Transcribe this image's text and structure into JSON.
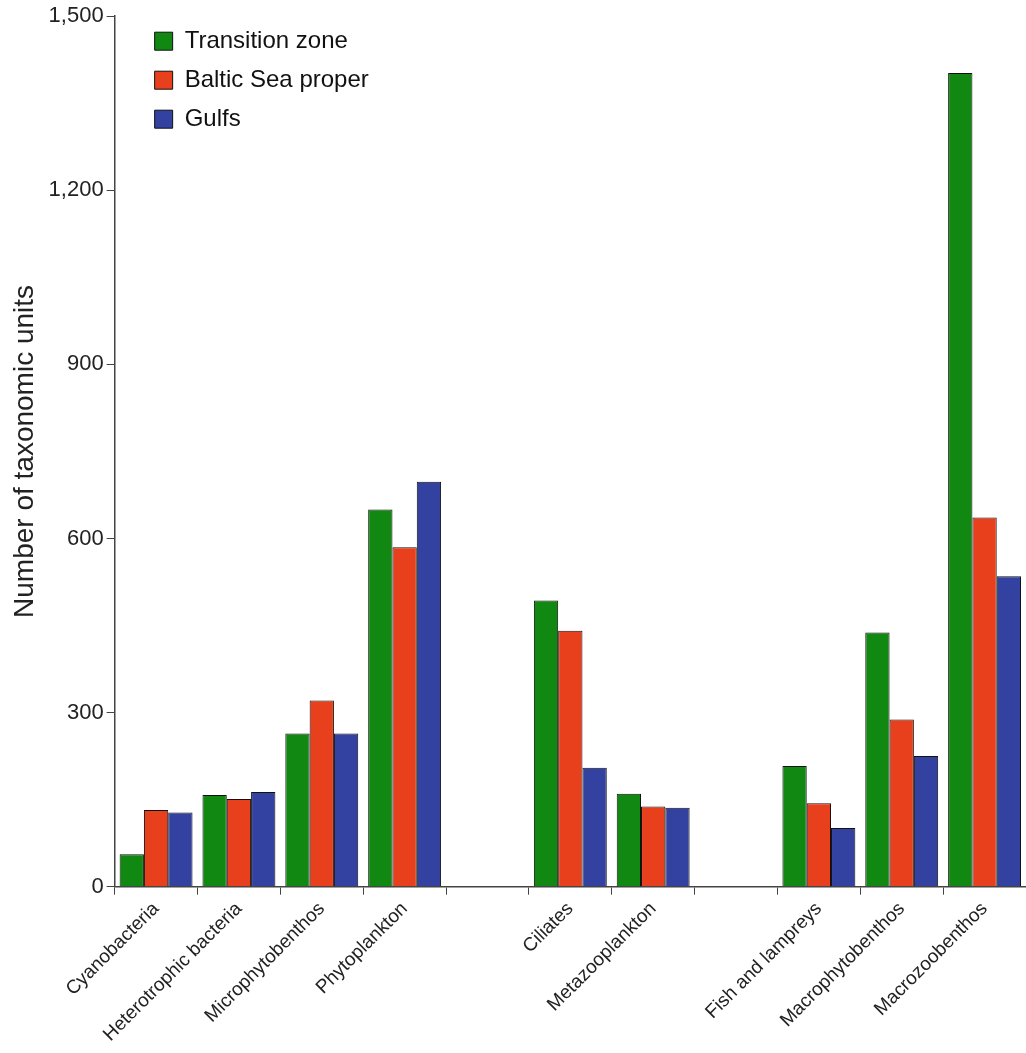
{
  "chart_data": {
    "type": "bar",
    "ylabel": "Number of taxonomic units",
    "categories": [
      "Cyanobacteria",
      "Heterotrophic bacteria",
      "Microphytobenthos",
      "Phytoplankton",
      null,
      "Ciliates",
      "Metazooplankton",
      null,
      "Fish and lampreys",
      "Macrophytobenthos",
      "Macrozoobenthos"
    ],
    "series": [
      {
        "name": "Transition zone",
        "color": "#118811",
        "values": [
          56,
          158,
          264,
          650,
          null,
          493,
          160,
          null,
          208,
          438,
          1402
        ]
      },
      {
        "name": "Baltic Sea proper",
        "color": "#e8401c",
        "values": [
          132,
          151,
          321,
          585,
          null,
          441,
          138,
          null,
          144,
          288,
          636
        ]
      },
      {
        "name": "Gulfs",
        "color": "#3341a0",
        "values": [
          128,
          163,
          264,
          698,
          null,
          205,
          136,
          null,
          101,
          225,
          535
        ]
      }
    ],
    "ylim": [
      0,
      1500
    ],
    "yticks": [
      {
        "value": 0,
        "label": "0"
      },
      {
        "value": 300,
        "label": "300"
      },
      {
        "value": 600,
        "label": "600"
      },
      {
        "value": 900,
        "label": "900"
      },
      {
        "value": 1200,
        "label": "1,200"
      },
      {
        "value": 1500,
        "label": "1,500"
      }
    ],
    "grid": false,
    "legend": "top left"
  }
}
